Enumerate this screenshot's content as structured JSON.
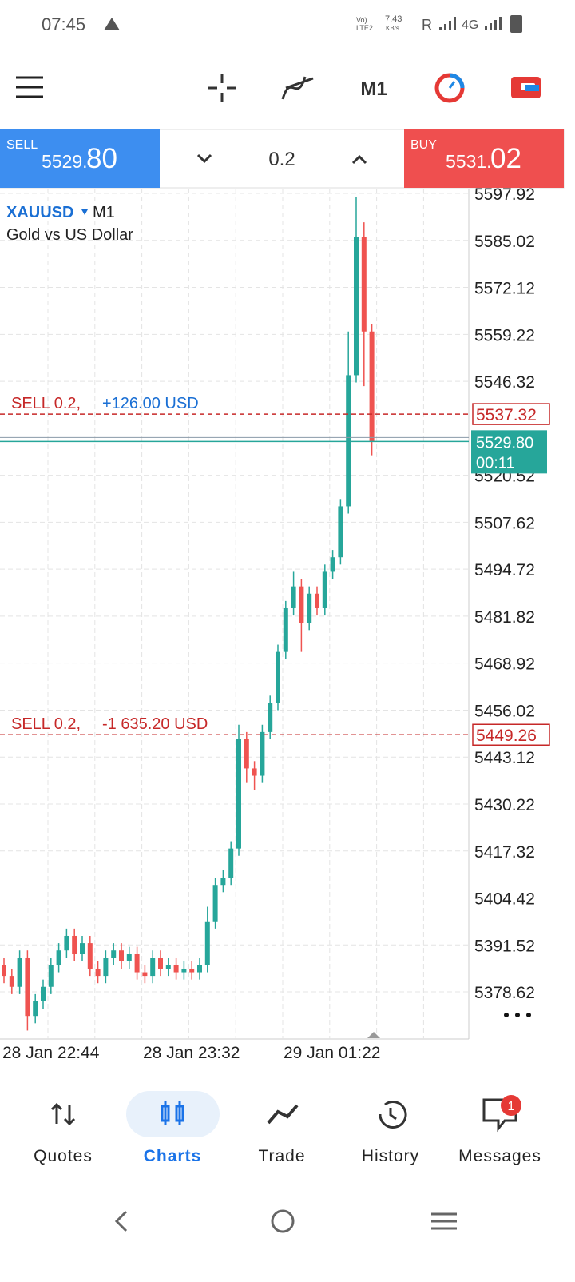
{
  "status_bar": {
    "time": "07:45",
    "volte": "Vo)",
    "lte": "LTE2",
    "speed": "7.43",
    "speed_unit": "KB/s",
    "roaming": "R",
    "network": "4G"
  },
  "toolbar": {
    "timeframe": "M1"
  },
  "trade_panel": {
    "sell_label": "SELL",
    "sell_price_main": "5529.",
    "sell_price_big": "80",
    "lot": "0.2",
    "buy_label": "BUY",
    "buy_price_main": "5531.",
    "buy_price_big": "02"
  },
  "chart_data": {
    "type": "candlestick",
    "symbol": "XAUUSD",
    "timeframe": "M1",
    "description": "Gold vs US Dollar",
    "up_color": "#26a69a",
    "down_color": "#ef5350",
    "grid": true,
    "ylim": [
      5365.68,
      5599.24
    ],
    "yticks": [
      5597.92,
      5585.02,
      5572.12,
      5559.22,
      5546.32,
      5520.52,
      5507.62,
      5494.72,
      5481.82,
      5468.92,
      5456.02,
      5443.12,
      5430.22,
      5417.32,
      5404.42,
      5391.52,
      5378.62
    ],
    "xlabels": [
      "28 Jan 22:44",
      "28 Jan 23:32",
      "29 Jan 01:22"
    ],
    "open": [
      5386,
      5383,
      5380,
      5388,
      5372,
      5376,
      5380,
      5386,
      5390,
      5394,
      5389,
      5392,
      5385,
      5383,
      5388,
      5390,
      5387,
      5389,
      5384,
      5383,
      5388,
      5385,
      5386,
      5384,
      5385,
      5384,
      5386,
      5398,
      5408,
      5410,
      5418,
      5448,
      5440,
      5438,
      5450,
      5458,
      5472,
      5484,
      5490,
      5480,
      5488,
      5484,
      5494,
      5498,
      5512,
      5548,
      5586,
      5560
    ],
    "high": [
      5388,
      5385,
      5390,
      5390,
      5378,
      5382,
      5388,
      5392,
      5396,
      5396,
      5394,
      5394,
      5387,
      5390,
      5392,
      5392,
      5391,
      5391,
      5386,
      5390,
      5390,
      5388,
      5388,
      5387,
      5387,
      5388,
      5402,
      5410,
      5412,
      5420,
      5452,
      5450,
      5442,
      5452,
      5460,
      5474,
      5486,
      5494,
      5492,
      5490,
      5490,
      5496,
      5500,
      5514,
      5560,
      5597,
      5590,
      5562
    ],
    "low": [
      5381,
      5378,
      5378,
      5368,
      5370,
      5374,
      5378,
      5384,
      5388,
      5387,
      5387,
      5383,
      5381,
      5381,
      5386,
      5385,
      5385,
      5382,
      5381,
      5381,
      5383,
      5383,
      5382,
      5382,
      5382,
      5382,
      5384,
      5396,
      5406,
      5408,
      5416,
      5436,
      5434,
      5436,
      5448,
      5456,
      5470,
      5482,
      5472,
      5478,
      5482,
      5482,
      5492,
      5496,
      5510,
      5546,
      5545,
      5526
    ],
    "close": [
      5383,
      5380,
      5388,
      5372,
      5376,
      5380,
      5386,
      5390,
      5394,
      5389,
      5392,
      5385,
      5383,
      5388,
      5390,
      5387,
      5389,
      5384,
      5383,
      5388,
      5385,
      5386,
      5384,
      5385,
      5384,
      5386,
      5398,
      5408,
      5410,
      5418,
      5448,
      5440,
      5438,
      5450,
      5458,
      5472,
      5484,
      5490,
      5480,
      5488,
      5484,
      5494,
      5498,
      5512,
      5548,
      5586,
      5560,
      5529.8
    ],
    "orders": [
      {
        "side_lot": "SELL 0.2,",
        "profit": "+126.00 USD",
        "price": 5537.32
      },
      {
        "side_lot": "SELL 0.2,",
        "profit": "-1 635.20 USD",
        "price": 5449.26
      }
    ],
    "bid": {
      "value": 5529.8,
      "label": "5529.80"
    },
    "bid_timer": "00:11"
  },
  "nav": {
    "items": [
      "Quotes",
      "Charts",
      "Trade",
      "History",
      "Messages"
    ],
    "badge": "1"
  }
}
